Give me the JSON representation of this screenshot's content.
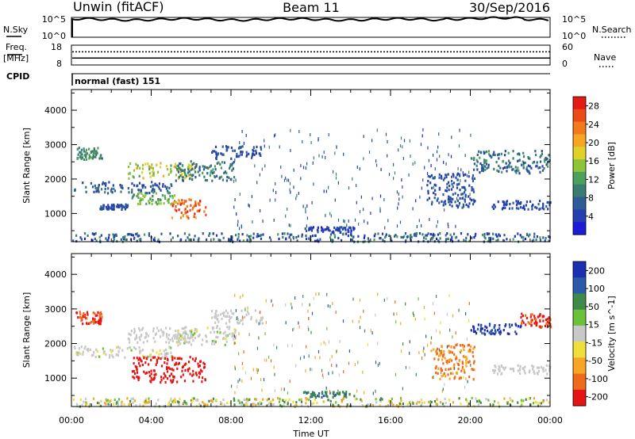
{
  "header": {
    "radar": "Unwin (fitACF)",
    "beam": "Beam 11",
    "date": "30/Sep/2016"
  },
  "noise_panel": {
    "left_label": "N.Sky",
    "right_label": "N.Search",
    "left_ticks": [
      "10^5",
      "10^0"
    ],
    "right_ticks": [
      "10^5",
      "10^0"
    ]
  },
  "freq_panel": {
    "left_label_1": "Freq.",
    "left_label_2": "[MHz]",
    "right_label": "Nave",
    "left_ticks": [
      "18",
      "8"
    ],
    "right_ticks": [
      "60",
      "0"
    ],
    "freq_mhz": 11.5,
    "nave": 40
  },
  "cpid": {
    "label": "CPID",
    "mode_text": "normal (fast) 151"
  },
  "chart_data": [
    {
      "type": "scatter",
      "name": "Power",
      "ylabel": "Slant Range [km]",
      "ylim": [
        180,
        4600
      ],
      "yticks": [
        "1000",
        "2000",
        "3000",
        "4000"
      ],
      "ytick_values": [
        1000,
        2000,
        3000,
        4000
      ],
      "xlabel": "Time UT",
      "xlim": [
        0,
        24
      ],
      "xticks": [
        "00:00",
        "04:00",
        "08:00",
        "12:00",
        "16:00",
        "20:00",
        "00:00"
      ],
      "xtick_values": [
        0,
        4,
        8,
        12,
        16,
        20,
        24
      ],
      "colorbar": {
        "label": "Power [dB]",
        "ticks": [
          "4",
          "8",
          "12",
          "16",
          "20",
          "24",
          "28"
        ],
        "tick_values": [
          4,
          8,
          12,
          16,
          20,
          24,
          28
        ],
        "range": [
          0,
          30
        ]
      },
      "regions": [
        {
          "t": [
            0.1,
            5.0
          ],
          "r": [
            1620,
            1950
          ],
          "value": [
            3,
            9
          ]
        },
        {
          "t": [
            1.4,
            2.8
          ],
          "r": [
            1150,
            1300
          ],
          "value": [
            3,
            7
          ]
        },
        {
          "t": [
            2.8,
            6.2
          ],
          "r": [
            2050,
            2500
          ],
          "value": [
            12,
            20
          ]
        },
        {
          "t": [
            5.2,
            8.2
          ],
          "r": [
            1980,
            2550
          ],
          "value": [
            6,
            12
          ]
        },
        {
          "t": [
            7.0,
            9.6
          ],
          "r": [
            2600,
            3000
          ],
          "value": [
            3,
            8
          ]
        },
        {
          "t": [
            3.0,
            5.2
          ],
          "r": [
            1300,
            1650
          ],
          "value": [
            10,
            16
          ]
        },
        {
          "t": [
            5.0,
            6.7
          ],
          "r": [
            900,
            1450
          ],
          "value": [
            20,
            29
          ]
        },
        {
          "t": [
            0.0,
            24.0
          ],
          "r": [
            210,
            460
          ],
          "value": [
            2,
            12
          ]
        },
        {
          "t": [
            11.6,
            14.2
          ],
          "r": [
            480,
            640
          ],
          "value": [
            2,
            6
          ]
        },
        {
          "t": [
            17.8,
            20.2
          ],
          "r": [
            1200,
            2200
          ],
          "value": [
            3,
            8
          ]
        },
        {
          "t": [
            20.0,
            24.0
          ],
          "r": [
            2200,
            2850
          ],
          "value": [
            3,
            12
          ]
        },
        {
          "t": [
            21.0,
            24.0
          ],
          "r": [
            1150,
            1400
          ],
          "value": [
            3,
            6
          ]
        },
        {
          "t": [
            0.2,
            1.5
          ],
          "r": [
            2600,
            2950
          ],
          "value": [
            8,
            14
          ]
        },
        {
          "t": [
            8.0,
            20.0
          ],
          "r": [
            600,
            3500
          ],
          "value": [
            2,
            10
          ]
        }
      ]
    },
    {
      "type": "scatter",
      "name": "Velocity",
      "ylabel": "Slant Range [km]",
      "ylim": [
        180,
        4600
      ],
      "yticks": [
        "1000",
        "2000",
        "3000",
        "4000"
      ],
      "ytick_values": [
        1000,
        2000,
        3000,
        4000
      ],
      "xlabel": "Time UT",
      "xlim": [
        0,
        24
      ],
      "xticks": [
        "00:00",
        "04:00",
        "08:00",
        "12:00",
        "16:00",
        "20:00",
        "00:00"
      ],
      "xtick_values": [
        0,
        4,
        8,
        12,
        16,
        20,
        24
      ],
      "colorbar": {
        "label": "Velocity [m s^-1]",
        "ticks": [
          "200",
          "100",
          "50",
          "15",
          "-15",
          "-50",
          "-100",
          "-200"
        ],
        "tick_values": [
          200,
          100,
          50,
          15,
          -15,
          -50,
          -100,
          -200
        ],
        "range": [
          -250,
          250
        ]
      },
      "regions": [
        {
          "t": [
            0.1,
            5.0
          ],
          "r": [
            1620,
            1950
          ],
          "value": [
            -20,
            20
          ]
        },
        {
          "t": [
            2.8,
            6.2
          ],
          "r": [
            2050,
            2500
          ],
          "value": [
            -15,
            15
          ]
        },
        {
          "t": [
            5.2,
            8.2
          ],
          "r": [
            1980,
            2550
          ],
          "value": [
            -20,
            20
          ]
        },
        {
          "t": [
            7.0,
            9.6
          ],
          "r": [
            2600,
            3000
          ],
          "value": [
            -15,
            15
          ]
        },
        {
          "t": [
            3.0,
            6.7
          ],
          "r": [
            900,
            1650
          ],
          "value": [
            -240,
            -150
          ]
        },
        {
          "t": [
            0.2,
            1.5
          ],
          "r": [
            2600,
            2950
          ],
          "value": [
            -220,
            -80
          ]
        },
        {
          "t": [
            0.0,
            24.0
          ],
          "r": [
            210,
            460
          ],
          "value": [
            -60,
            60
          ]
        },
        {
          "t": [
            11.6,
            14.2
          ],
          "r": [
            480,
            640
          ],
          "value": [
            30,
            90
          ]
        },
        {
          "t": [
            18.0,
            20.2
          ],
          "r": [
            1000,
            2000
          ],
          "value": [
            -150,
            -40
          ]
        },
        {
          "t": [
            20.0,
            22.5
          ],
          "r": [
            2300,
            2600
          ],
          "value": [
            120,
            230
          ]
        },
        {
          "t": [
            22.5,
            24.0
          ],
          "r": [
            2500,
            2900
          ],
          "value": [
            -220,
            -100
          ]
        },
        {
          "t": [
            21.0,
            24.0
          ],
          "r": [
            1150,
            1400
          ],
          "value": [
            -15,
            15
          ]
        },
        {
          "t": [
            8.0,
            20.0
          ],
          "r": [
            600,
            3500
          ],
          "value": [
            -100,
            100
          ]
        }
      ]
    }
  ]
}
